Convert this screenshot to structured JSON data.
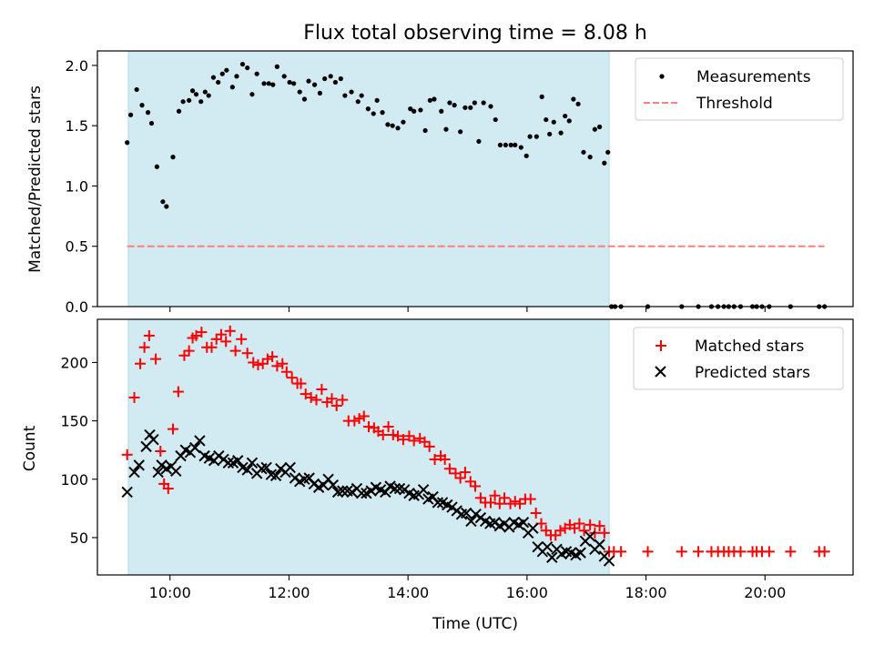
{
  "title": "Flux total observing time = 8.08 h",
  "colors": {
    "shade": "#add8e6",
    "measurements": "#000000",
    "threshold": "#ff7f7f",
    "matched": "#ff0000",
    "predicted": "#000000"
  },
  "chart_data": [
    {
      "type": "scatter",
      "ylabel": "Matched/Predicted stars",
      "xlim": [
        8.78,
        21.48
      ],
      "ylim": [
        0,
        2.12
      ],
      "yticks": [
        0.0,
        0.5,
        1.0,
        1.5,
        2.0
      ],
      "ytick_labels": [
        "0.0",
        "0.5",
        "1.0",
        "1.5",
        "2.0"
      ],
      "shaded_span": [
        9.3,
        17.38
      ],
      "legend": {
        "placement": "top-right",
        "entries": [
          "Measurements",
          "Threshold"
        ]
      },
      "series": [
        {
          "name": "Measurements",
          "marker": "dot",
          "x": [
            9.28,
            9.34,
            9.44,
            9.53,
            9.63,
            9.69,
            9.78,
            9.88,
            9.94,
            10.05,
            10.15,
            10.22,
            10.32,
            10.38,
            10.44,
            10.52,
            10.59,
            10.65,
            10.73,
            10.81,
            10.88,
            10.95,
            11.05,
            11.12,
            11.22,
            11.3,
            11.38,
            11.46,
            11.58,
            11.66,
            11.73,
            11.8,
            11.92,
            12.01,
            12.08,
            12.18,
            12.26,
            12.33,
            12.43,
            12.52,
            12.6,
            12.7,
            12.78,
            12.87,
            12.94,
            13.05,
            13.16,
            13.22,
            13.33,
            13.42,
            13.48,
            13.57,
            13.66,
            13.74,
            13.83,
            13.92,
            14.04,
            14.1,
            14.21,
            14.29,
            14.37,
            14.44,
            14.56,
            14.64,
            14.7,
            14.78,
            14.88,
            14.96,
            15.05,
            15.12,
            15.19,
            15.27,
            15.39,
            15.47,
            15.55,
            15.64,
            15.73,
            15.8,
            15.9,
            15.99,
            16.05,
            16.16,
            16.25,
            16.32,
            16.38,
            16.45,
            16.57,
            16.64,
            16.71,
            16.78,
            16.86,
            16.95,
            17.06,
            17.14,
            17.22,
            17.3,
            17.36,
            17.42,
            17.48,
            17.58,
            18.03,
            18.6,
            18.88,
            19.1,
            19.21,
            19.31,
            19.39,
            19.48,
            19.59,
            19.79,
            19.86,
            19.95,
            20.07,
            20.43,
            20.91,
            21.0
          ],
          "y": [
            1.36,
            1.59,
            1.8,
            1.67,
            1.61,
            1.52,
            1.16,
            0.87,
            0.83,
            1.24,
            1.62,
            1.7,
            1.71,
            1.79,
            1.76,
            1.7,
            1.78,
            1.75,
            1.9,
            1.86,
            1.93,
            1.96,
            1.82,
            1.91,
            2.01,
            1.98,
            1.76,
            1.93,
            1.85,
            1.85,
            1.84,
            1.99,
            1.91,
            1.86,
            1.85,
            1.78,
            1.72,
            1.87,
            1.84,
            1.77,
            1.89,
            1.91,
            1.86,
            1.89,
            1.75,
            1.78,
            1.7,
            1.75,
            1.64,
            1.6,
            1.71,
            1.61,
            1.51,
            1.5,
            1.48,
            1.53,
            1.64,
            1.62,
            1.63,
            1.46,
            1.71,
            1.72,
            1.62,
            1.47,
            1.69,
            1.67,
            1.45,
            1.65,
            1.65,
            1.69,
            1.37,
            1.69,
            1.66,
            1.55,
            1.34,
            1.34,
            1.34,
            1.34,
            1.32,
            1.25,
            1.41,
            1.41,
            1.74,
            1.55,
            1.43,
            1.53,
            1.44,
            1.58,
            1.54,
            1.72,
            1.68,
            1.28,
            1.24,
            1.47,
            1.49,
            1.19,
            1.28,
            0.0,
            0.0,
            0.0,
            0.0,
            0.0,
            0.0,
            0.0,
            0.0,
            0.0,
            0.0,
            0.0,
            0.0,
            0.0,
            0.0,
            0.0,
            0.0,
            0.0,
            0.0,
            0.0
          ]
        },
        {
          "name": "Threshold",
          "style": "dashed",
          "x": [
            9.28,
            21.0
          ],
          "y": [
            0.5,
            0.5
          ]
        }
      ]
    },
    {
      "type": "scatter",
      "xlabel": "Time (UTC)",
      "ylabel": "Count",
      "xlim": [
        8.78,
        21.48
      ],
      "ylim": [
        18,
        237
      ],
      "xticks": [
        10,
        12,
        14,
        16,
        18,
        20
      ],
      "xtick_labels": [
        "10:00",
        "12:00",
        "14:00",
        "16:00",
        "18:00",
        "20:00"
      ],
      "yticks": [
        50,
        100,
        150,
        200
      ],
      "ytick_labels": [
        "50",
        "100",
        "150",
        "200"
      ],
      "shaded_span": [
        9.3,
        17.38
      ],
      "legend": {
        "placement": "top-right",
        "entries": [
          "Matched stars",
          "Predicted stars"
        ]
      },
      "series": [
        {
          "name": "Matched stars",
          "marker": "plus",
          "x": [
            9.28,
            9.4,
            9.5,
            9.57,
            9.65,
            9.76,
            9.84,
            9.9,
            9.97,
            10.05,
            10.14,
            10.24,
            10.32,
            10.38,
            10.44,
            10.53,
            10.62,
            10.7,
            10.78,
            10.86,
            10.94,
            11.01,
            11.1,
            11.2,
            11.3,
            11.4,
            11.48,
            11.56,
            11.64,
            11.72,
            11.8,
            11.89,
            11.96,
            12.05,
            12.14,
            12.2,
            12.28,
            12.37,
            12.46,
            12.55,
            12.64,
            12.72,
            12.8,
            12.9,
            13.0,
            13.1,
            13.18,
            13.26,
            13.34,
            13.43,
            13.5,
            13.58,
            13.67,
            13.75,
            13.83,
            13.92,
            14.02,
            14.1,
            14.2,
            14.28,
            14.36,
            14.45,
            14.55,
            14.62,
            14.7,
            14.8,
            14.88,
            14.96,
            15.05,
            15.13,
            15.22,
            15.3,
            15.39,
            15.46,
            15.54,
            15.62,
            15.72,
            15.8,
            15.88,
            15.97,
            16.06,
            16.15,
            16.24,
            16.32,
            16.4,
            16.48,
            16.56,
            16.64,
            16.72,
            16.8,
            16.88,
            16.96,
            17.06,
            17.14,
            17.22,
            17.3,
            17.38,
            17.46,
            17.58,
            18.03,
            18.6,
            18.88,
            19.1,
            19.21,
            19.31,
            19.39,
            19.48,
            19.59,
            19.79,
            19.86,
            19.95,
            20.07,
            20.43,
            20.91,
            21.0
          ],
          "y": [
            121,
            170,
            199,
            213,
            223,
            203,
            124,
            96,
            92,
            143,
            175,
            206,
            210,
            221,
            223,
            226,
            213,
            213,
            220,
            224,
            218,
            227,
            210,
            220,
            208,
            200,
            198,
            199,
            203,
            205,
            197,
            199,
            192,
            187,
            182,
            182,
            173,
            170,
            168,
            177,
            166,
            169,
            163,
            168,
            150,
            150,
            152,
            154,
            145,
            144,
            141,
            138,
            145,
            138,
            137,
            134,
            137,
            133,
            135,
            132,
            128,
            117,
            120,
            117,
            109,
            105,
            101,
            106,
            98,
            94,
            84,
            80,
            80,
            86,
            79,
            84,
            79,
            81,
            79,
            83,
            83,
            71,
            62,
            56,
            52,
            52,
            56,
            58,
            61,
            58,
            62,
            56,
            61,
            54,
            60,
            54,
            38,
            38,
            38,
            38,
            38,
            38,
            38,
            38,
            38,
            38,
            38,
            38,
            38,
            38,
            38,
            38,
            38,
            38,
            38
          ]
        },
        {
          "name": "Predicted stars",
          "marker": "x",
          "x": [
            9.28,
            9.4,
            9.48,
            9.6,
            9.66,
            9.72,
            9.8,
            9.86,
            9.94,
            10.02,
            10.1,
            10.18,
            10.26,
            10.34,
            10.42,
            10.5,
            10.58,
            10.66,
            10.74,
            10.82,
            10.9,
            10.98,
            11.06,
            11.14,
            11.22,
            11.3,
            11.38,
            11.46,
            11.54,
            11.62,
            11.7,
            11.78,
            11.86,
            11.94,
            12.02,
            12.1,
            12.18,
            12.26,
            12.34,
            12.42,
            12.5,
            12.58,
            12.66,
            12.74,
            12.82,
            12.9,
            12.98,
            13.06,
            13.14,
            13.22,
            13.3,
            13.38,
            13.46,
            13.54,
            13.62,
            13.7,
            13.78,
            13.86,
            13.94,
            14.02,
            14.1,
            14.18,
            14.26,
            14.34,
            14.42,
            14.5,
            14.58,
            14.66,
            14.74,
            14.82,
            14.9,
            14.98,
            15.06,
            15.14,
            15.22,
            15.3,
            15.38,
            15.46,
            15.54,
            15.62,
            15.7,
            15.78,
            15.86,
            15.94,
            16.02,
            16.1,
            16.18,
            16.26,
            16.34,
            16.42,
            16.5,
            16.58,
            16.66,
            16.74,
            16.82,
            16.9,
            16.98,
            17.06,
            17.14,
            17.22,
            17.3,
            17.38
          ],
          "y": [
            89,
            106,
            112,
            128,
            138,
            134,
            106,
            112,
            109,
            111,
            107,
            120,
            125,
            123,
            127,
            133,
            120,
            118,
            116,
            120,
            117,
            114,
            114,
            116,
            110,
            108,
            114,
            105,
            109,
            110,
            104,
            103,
            109,
            106,
            110,
            101,
            98,
            100,
            101,
            96,
            93,
            95,
            100,
            95,
            89,
            90,
            90,
            89,
            92,
            88,
            88,
            90,
            93,
            91,
            89,
            94,
            92,
            92,
            91,
            88,
            86,
            87,
            91,
            83,
            85,
            80,
            80,
            78,
            76,
            73,
            70,
            71,
            64,
            70,
            67,
            64,
            62,
            63,
            60,
            62,
            59,
            63,
            61,
            63,
            54,
            58,
            42,
            38,
            42,
            33,
            40,
            36,
            38,
            37,
            35,
            37,
            47,
            51,
            40,
            44,
            34,
            30
          ]
        }
      ]
    }
  ]
}
